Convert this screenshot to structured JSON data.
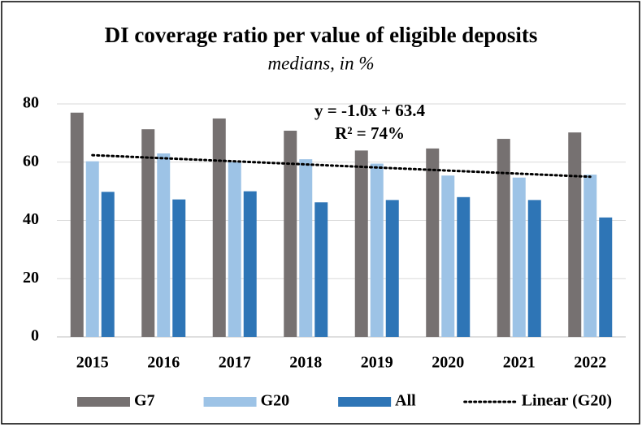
{
  "chart_data": {
    "type": "bar",
    "title": "DI coverage ratio per value of eligible deposits",
    "subtitle": "medians, in %",
    "categories": [
      "2015",
      "2016",
      "2017",
      "2018",
      "2019",
      "2020",
      "2021",
      "2022"
    ],
    "series": [
      {
        "name": "G7",
        "color": "#767171",
        "values": [
          77,
          71.3,
          75,
          70.8,
          64,
          64.7,
          68,
          70.2
        ]
      },
      {
        "name": "G20",
        "color": "#9dc3e6",
        "values": [
          60.3,
          63,
          60,
          61,
          59.5,
          55.4,
          54.7,
          55.7
        ]
      },
      {
        "name": "All",
        "color": "#2e75b6",
        "values": [
          49.8,
          47.2,
          50,
          46.2,
          47,
          48,
          47,
          41
        ]
      }
    ],
    "trendline": {
      "name": "Linear (G20)",
      "source": "G20",
      "equation": "y = -1.0x + 63.4",
      "r2": "R² = 74%"
    },
    "ylim": [
      0,
      80
    ],
    "yticks": [
      0,
      20,
      40,
      60,
      80
    ],
    "grid": true,
    "legend": "bottom"
  }
}
